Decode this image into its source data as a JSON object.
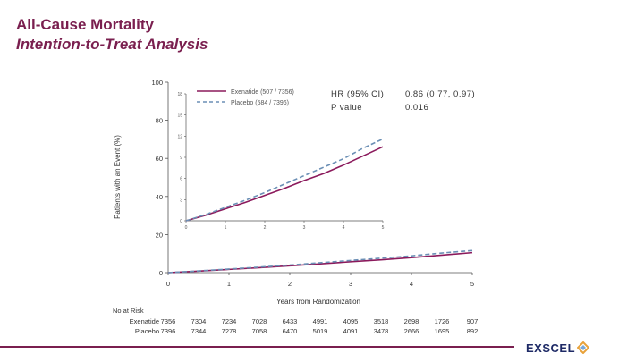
{
  "header": {
    "title": "All-Cause Mortality",
    "subtitle": "Intention-to-Treat Analysis"
  },
  "stats": {
    "hr_label": "HR (95% CI)",
    "p_label": "P value",
    "hr_value": "0.86 (0.77, 0.97)",
    "p_value": "0.016"
  },
  "branding": {
    "logo_text": "EXSCEL"
  },
  "colors": {
    "brand": "#7a1f4f",
    "exenatide": "#8b1a5c",
    "placebo": "#6b8fb5",
    "logo": "#1e2a66"
  },
  "chart_data": {
    "type": "line",
    "title": "",
    "xlabel": "Years from Randomization",
    "ylabel": "Patients with an Event (%)",
    "xlim": [
      0,
      5
    ],
    "ylim": [
      0,
      100
    ],
    "x_ticks": [
      "0",
      "1",
      "2",
      "3",
      "4",
      "5"
    ],
    "y_ticks": [
      "0",
      "20",
      "40",
      "60",
      "80",
      "100"
    ],
    "series": [
      {
        "name": "Exenatide (507 / 7356)",
        "style": "solid",
        "x": [
          0,
          0.5,
          1,
          1.5,
          2,
          2.5,
          3,
          3.5,
          4,
          4.5,
          5
        ],
        "y": [
          0,
          0.8,
          1.7,
          2.6,
          3.6,
          4.6,
          5.7,
          6.7,
          7.9,
          9.2,
          10.5
        ]
      },
      {
        "name": "Placebo (584 / 7396)",
        "style": "dashed",
        "x": [
          0,
          0.5,
          1,
          1.5,
          2,
          2.5,
          3,
          3.5,
          4,
          4.5,
          5
        ],
        "y": [
          0,
          0.9,
          1.9,
          2.9,
          4.0,
          5.2,
          6.4,
          7.6,
          8.8,
          10.3,
          11.6
        ]
      }
    ],
    "inset": {
      "x_ticks": [
        "0",
        "1",
        "2",
        "3",
        "4",
        "5"
      ],
      "y_ticks": [
        "0",
        "3",
        "6",
        "9",
        "12",
        "15",
        "18"
      ],
      "ylim": [
        0,
        18
      ],
      "xlim": [
        0,
        5
      ]
    },
    "at_risk": {
      "title": "No at Risk",
      "rows": [
        {
          "label": "Exenatide",
          "values": [
            "7356",
            "7304",
            "7234",
            "7028",
            "6433",
            "4991",
            "4095",
            "3518",
            "2698",
            "1726",
            "907"
          ]
        },
        {
          "label": "Placebo",
          "values": [
            "7396",
            "7344",
            "7278",
            "7058",
            "6470",
            "5019",
            "4091",
            "3478",
            "2666",
            "1695",
            "892"
          ]
        }
      ]
    }
  }
}
